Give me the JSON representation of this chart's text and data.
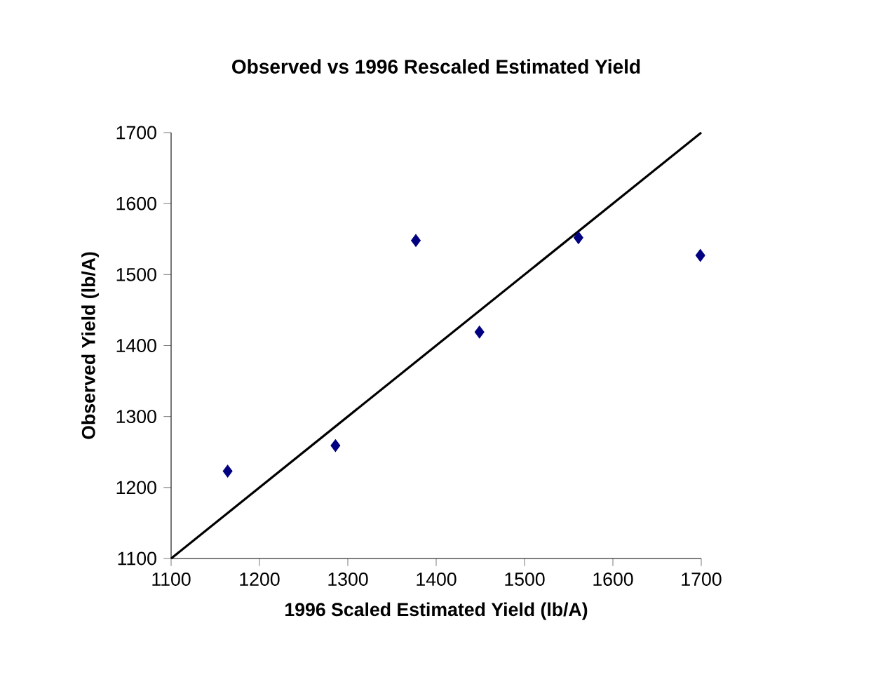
{
  "chart_data": {
    "type": "scatter",
    "title": "Observed vs 1996 Rescaled Estimated Yield",
    "xlabel": "1996 Scaled Estimated Yield (lb/A)",
    "ylabel": "Observed Yield (lb/A)",
    "xlim": [
      1100,
      1700
    ],
    "ylim": [
      1100,
      1700
    ],
    "xticks": [
      1100,
      1200,
      1300,
      1400,
      1500,
      1600,
      1700
    ],
    "yticks": [
      1100,
      1200,
      1300,
      1400,
      1500,
      1600,
      1700
    ],
    "marker": "diamond",
    "series": [
      {
        "color": "#000080",
        "x": [
          1164,
          1286,
          1377,
          1449,
          1561,
          1699
        ],
        "values": [
          1223,
          1259,
          1548,
          1419,
          1552,
          1527
        ]
      },
      {
        "type": "line",
        "color": "#000000",
        "marker": "none",
        "line_style": "solid",
        "x": [
          1100,
          1700
        ],
        "values": [
          1100,
          1700
        ]
      }
    ]
  }
}
